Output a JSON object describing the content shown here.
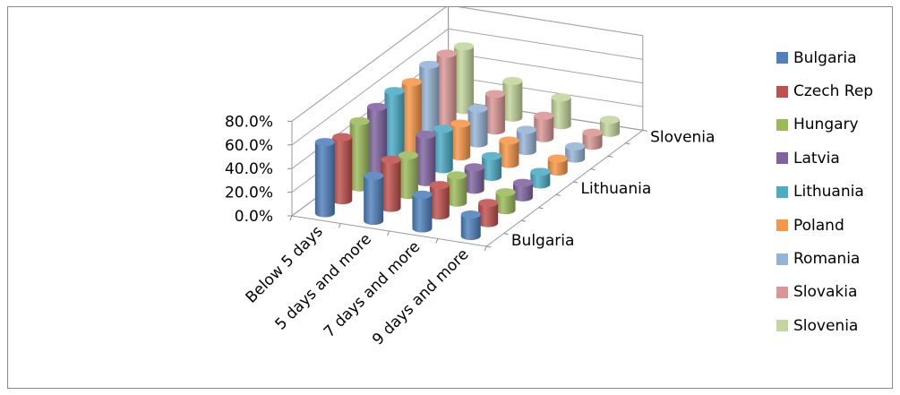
{
  "chart_data": {
    "type": "bar",
    "subtype": "3d-cylinder",
    "title": "",
    "xlabel": "",
    "ylabel": "",
    "ylim": [
      0,
      80
    ],
    "y_ticks": [
      "0.0%",
      "20.0%",
      "40.0%",
      "60.0%",
      "80.0%"
    ],
    "categories": [
      "Below 5 days",
      "5 days and more",
      "7 days and more",
      "9 days and more"
    ],
    "depth_tick_labels": [
      "Bulgaria",
      "Lithuania",
      "Slovenia"
    ],
    "legend_position": "right",
    "series": [
      {
        "name": "Bulgaria",
        "color": "#4f81bd",
        "values": [
          60.2,
          38.1,
          28.6,
          18.2
        ]
      },
      {
        "name": "Czech Rep",
        "color": "#c0504d",
        "values": [
          53.5,
          40.8,
          25.8,
          17.1
        ]
      },
      {
        "name": "Hungary",
        "color": "#9bbb59",
        "values": [
          56.0,
          33.6,
          23.1,
          15.2
        ]
      },
      {
        "name": "Latvia",
        "color": "#8064a2",
        "values": [
          57.2,
          40.1,
          19.0,
          12.3
        ]
      },
      {
        "name": "Lithuania",
        "color": "#4bacc6",
        "values": [
          59.7,
          34.2,
          17.6,
          10.7
        ]
      },
      {
        "name": "Poland",
        "color": "#f79646",
        "values": [
          56.4,
          27.7,
          19.8,
          11.0
        ]
      },
      {
        "name": "Romania",
        "color": "#95b3d7",
        "values": [
          60.1,
          29.5,
          18.0,
          10.4
        ]
      },
      {
        "name": "Slovakia",
        "color": "#da9694",
        "values": [
          58.6,
          30.9,
          18.9,
          11.1
        ]
      },
      {
        "name": "Slovenia",
        "color": "#c3d69b",
        "values": [
          53.9,
          31.0,
          23.6,
          11.1
        ]
      }
    ]
  }
}
